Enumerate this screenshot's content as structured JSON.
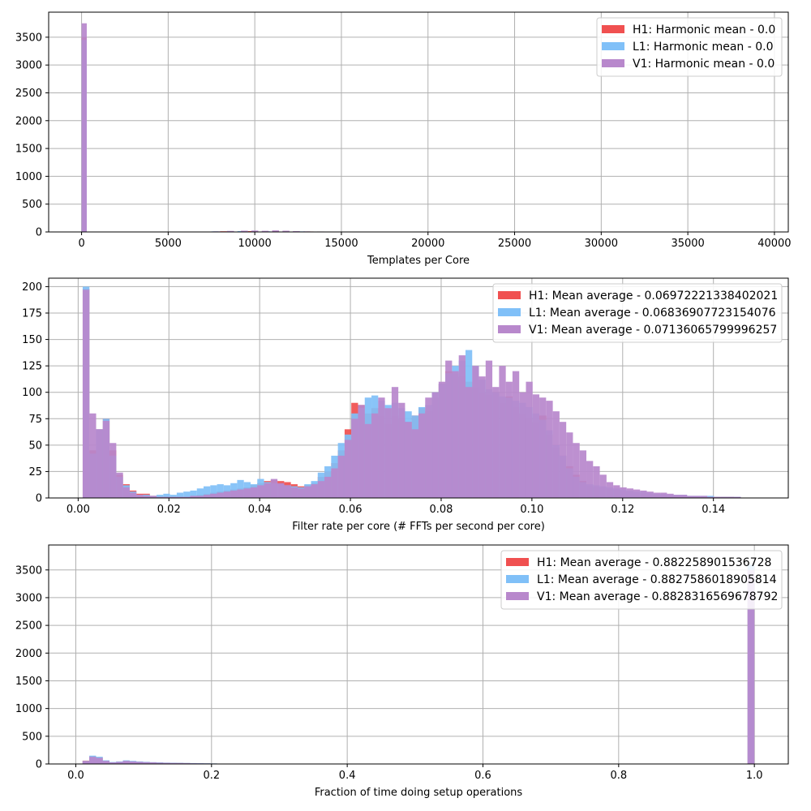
{
  "chart_data": [
    {
      "type": "histogram",
      "xlabel": "Templates per Core",
      "ylabel": "",
      "xlim": [
        -1900,
        40800
      ],
      "ylim": [
        0,
        3950
      ],
      "xticks": [
        0,
        5000,
        10000,
        15000,
        20000,
        25000,
        30000,
        35000,
        40000
      ],
      "yticks": [
        0,
        500,
        1000,
        1500,
        2000,
        2500,
        3000,
        3500
      ],
      "grid": true,
      "legend_position": "top-right",
      "colors": {
        "H1": "#f05050",
        "L1": "#80c0f8",
        "V1": "#b888cc"
      },
      "series": [
        {
          "name": "H1: Harmonic mean  - 0.0",
          "bins": [
            [
              0,
              300,
              3500
            ],
            [
              8000,
              8400,
              12
            ],
            [
              9600,
              10000,
              15
            ],
            [
              11000,
              11400,
              12
            ],
            [
              13000,
              13400,
              8
            ]
          ]
        },
        {
          "name": "L1: Harmonic mean  - 0.0",
          "bins": [
            [
              0,
              300,
              3450
            ],
            [
              7500,
              7900,
              10
            ],
            [
              9000,
              9400,
              15
            ],
            [
              10500,
              10900,
              12
            ],
            [
              12500,
              12900,
              10
            ],
            [
              15000,
              15400,
              6
            ]
          ]
        },
        {
          "name": "V1: Harmonic mean  - 0.0",
          "bins": [
            [
              0,
              300,
              3750
            ],
            [
              7600,
              8000,
              10
            ],
            [
              8400,
              8800,
              18
            ],
            [
              9200,
              9600,
              22
            ],
            [
              9800,
              10200,
              25
            ],
            [
              10400,
              10800,
              20
            ],
            [
              11000,
              11400,
              28
            ],
            [
              11600,
              12000,
              22
            ],
            [
              12200,
              12600,
              15
            ],
            [
              12800,
              13200,
              10
            ],
            [
              13600,
              14000,
              8
            ]
          ]
        }
      ]
    },
    {
      "type": "histogram",
      "xlabel": "Filter rate per core (# FFTs per second per core)",
      "ylabel": "",
      "xlim": [
        -0.0065,
        0.1565
      ],
      "ylim": [
        0,
        208
      ],
      "xticks": [
        0.0,
        0.02,
        0.04,
        0.06,
        0.08,
        0.1,
        0.12,
        0.14
      ],
      "yticks": [
        0,
        25,
        50,
        75,
        100,
        125,
        150,
        175,
        200
      ],
      "grid": true,
      "legend_position": "top-right",
      "bin_start": 0.001,
      "bin_width": 0.00148,
      "colors": {
        "H1": "#f05050",
        "L1": "#80c0f8",
        "V1": "#b888cc"
      },
      "series": [
        {
          "name": "H1: Mean average - 0.06972221338402021",
          "values": [
            198,
            45,
            65,
            75,
            45,
            22,
            13,
            7,
            4,
            4,
            2,
            1,
            1,
            1,
            1,
            1,
            2,
            3,
            4,
            5,
            6,
            7,
            8,
            9,
            10,
            12,
            14,
            16,
            17,
            16,
            15,
            13,
            11,
            12,
            14,
            20,
            25,
            33,
            45,
            65,
            90,
            88,
            80,
            85,
            78,
            70,
            78,
            75,
            72,
            78,
            85,
            82,
            95,
            108,
            120,
            118,
            115,
            110,
            105,
            100,
            98,
            100,
            90,
            96,
            86,
            80,
            76,
            72,
            78,
            60,
            48,
            40,
            30,
            22,
            16,
            12,
            10,
            10,
            9,
            8,
            7,
            6,
            5,
            5,
            4,
            3,
            3,
            2,
            2,
            2,
            1,
            1,
            1,
            1,
            1,
            1,
            1,
            0,
            0,
            0
          ]
        },
        {
          "name": "L1: Mean average - 0.06836907723154076",
          "values": [
            200,
            42,
            65,
            75,
            40,
            20,
            12,
            6,
            3,
            3,
            2,
            3,
            4,
            3,
            5,
            6,
            7,
            9,
            11,
            12,
            13,
            12,
            14,
            17,
            15,
            13,
            18,
            15,
            14,
            13,
            12,
            11,
            10,
            13,
            16,
            24,
            30,
            40,
            52,
            60,
            80,
            85,
            95,
            97,
            92,
            88,
            90,
            85,
            82,
            78,
            86,
            88,
            100,
            108,
            118,
            125,
            130,
            140,
            125,
            112,
            103,
            100,
            96,
            95,
            92,
            90,
            86,
            80,
            74,
            64,
            50,
            40,
            28,
            20,
            15,
            13,
            12,
            11,
            10,
            9,
            8,
            7,
            6,
            6,
            5,
            4,
            4,
            3,
            3,
            3,
            2,
            2,
            2,
            2,
            1,
            1,
            1,
            1,
            0,
            0
          ]
        },
        {
          "name": "V1: Mean average - 0.07136065799996257",
          "values": [
            197,
            80,
            65,
            73,
            52,
            24,
            10,
            5,
            3,
            2,
            2,
            1,
            1,
            1,
            1,
            1,
            2,
            2,
            3,
            4,
            5,
            6,
            7,
            8,
            9,
            10,
            12,
            14,
            18,
            14,
            12,
            10,
            9,
            11,
            13,
            16,
            20,
            28,
            40,
            55,
            75,
            88,
            70,
            80,
            95,
            85,
            105,
            90,
            72,
            65,
            80,
            95,
            100,
            110,
            130,
            120,
            135,
            105,
            125,
            115,
            130,
            105,
            125,
            110,
            120,
            100,
            110,
            98,
            95,
            92,
            82,
            72,
            62,
            52,
            45,
            35,
            30,
            22,
            15,
            12,
            10,
            9,
            8,
            7,
            6,
            5,
            5,
            4,
            3,
            3,
            2,
            2,
            2,
            1,
            1,
            1,
            1,
            1,
            0,
            0
          ]
        }
      ]
    },
    {
      "type": "histogram",
      "xlabel": "Fraction of time doing setup operations",
      "ylabel": "",
      "xlim": [
        -0.04,
        1.05
      ],
      "ylim": [
        0,
        3950
      ],
      "xticks": [
        0.0,
        0.2,
        0.4,
        0.6,
        0.8,
        1.0
      ],
      "yticks": [
        0,
        500,
        1000,
        1500,
        2000,
        2500,
        3000,
        3500
      ],
      "grid": true,
      "legend_position": "top-right",
      "bin_start": 0.01,
      "bin_width": 0.0099,
      "colors": {
        "H1": "#f05050",
        "L1": "#80c0f8",
        "V1": "#b888cc"
      },
      "series": [
        {
          "name": "H1: Mean average - 0.882258901536728",
          "values": [
            60,
            140,
            120,
            60,
            30,
            40,
            60,
            50,
            40,
            35,
            30,
            25,
            22,
            20,
            18,
            16,
            14,
            12,
            10,
            8
          ],
          "tail_bin": [
            0.99,
            1.0,
            3550
          ]
        },
        {
          "name": "L1: Mean average - 0.8827586018905814",
          "values": [
            55,
            150,
            130,
            65,
            35,
            45,
            65,
            55,
            45,
            38,
            32,
            28,
            24,
            22,
            20,
            18,
            16,
            14,
            12,
            10
          ],
          "tail_bin": [
            0.99,
            1.0,
            3600
          ]
        },
        {
          "name": "V1: Mean average - 0.8828316569678792",
          "values": [
            50,
            130,
            110,
            55,
            28,
            38,
            55,
            45,
            38,
            32,
            28,
            22,
            20,
            18,
            16,
            14,
            12,
            10,
            8,
            6
          ],
          "tail_bin": [
            0.99,
            1.0,
            3500
          ]
        }
      ]
    }
  ]
}
